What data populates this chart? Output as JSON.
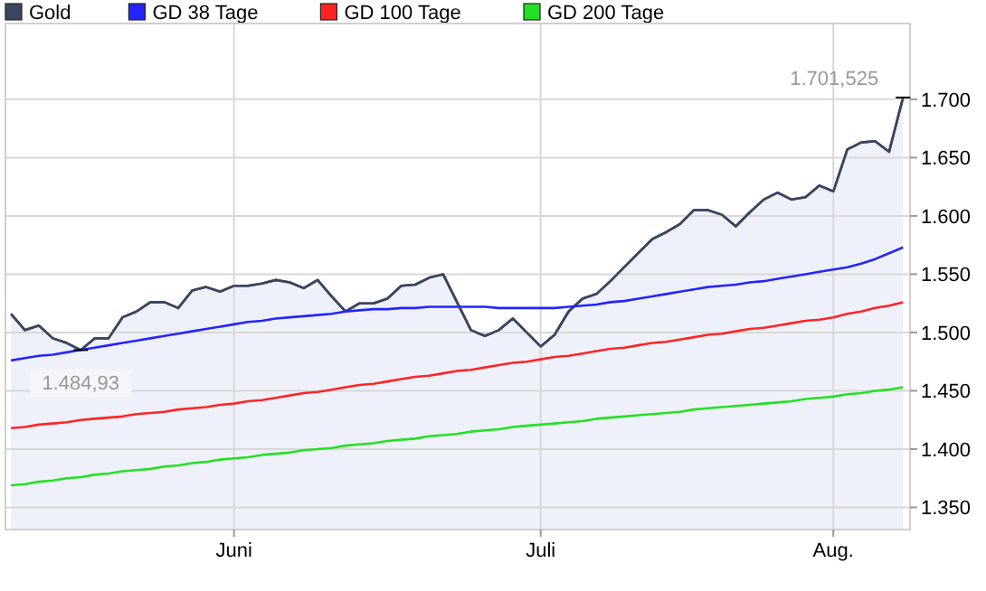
{
  "chart_data": {
    "type": "line",
    "categories": [
      null,
      null,
      null,
      null,
      null,
      null,
      null,
      null,
      null,
      null,
      null,
      null,
      null,
      null,
      null,
      null,
      "Juni",
      null,
      null,
      null,
      null,
      null,
      null,
      null,
      null,
      null,
      null,
      null,
      null,
      null,
      null,
      null,
      null,
      null,
      null,
      null,
      null,
      null,
      "Juli",
      null,
      null,
      null,
      null,
      null,
      null,
      null,
      null,
      null,
      null,
      null,
      null,
      null,
      null,
      null,
      null,
      null,
      null,
      null,
      null,
      "Aug.",
      null,
      null,
      null,
      null,
      null
    ],
    "series": [
      {
        "name": "Gold",
        "type": "area",
        "color": "#3a4560",
        "values": [
          1516,
          1502,
          1506,
          1495,
          1491,
          1484.93,
          1495,
          1495,
          1513,
          1518,
          1526,
          1526,
          1521,
          1536,
          1539,
          1535,
          1540,
          1540,
          1542,
          1545,
          1543,
          1538,
          1545,
          1531,
          1518,
          1525,
          1525,
          1529,
          1540,
          1541,
          1547,
          1550,
          1526,
          1502,
          1497,
          1502,
          1512,
          1500,
          1488,
          1498,
          1518,
          1529,
          1533,
          1544,
          1556,
          1568,
          1580,
          1586,
          1593,
          1605,
          1605,
          1601,
          1591,
          1603,
          1614,
          1620,
          1614,
          1616,
          1626,
          1621,
          1657,
          1663,
          1664,
          1655,
          1701.525
        ]
      },
      {
        "name": "GD 38 Tage",
        "color": "#2424ff",
        "values": [
          1476,
          1478,
          1480,
          1481,
          1483,
          1485,
          1487,
          1489,
          1491,
          1493,
          1495,
          1497,
          1499,
          1501,
          1503,
          1505,
          1507,
          1509,
          1510,
          1512,
          1513,
          1514,
          1515,
          1516,
          1518,
          1519,
          1520,
          1520,
          1521,
          1521,
          1522,
          1522,
          1522,
          1522,
          1522,
          1521,
          1521,
          1521,
          1521,
          1521,
          1522,
          1523,
          1524,
          1526,
          1527,
          1529,
          1531,
          1533,
          1535,
          1537,
          1539,
          1540,
          1541,
          1543,
          1544,
          1546,
          1548,
          1550,
          1552,
          1554,
          1556,
          1559,
          1563,
          1568,
          1573
        ]
      },
      {
        "name": "GD 100 Tage",
        "color": "#ff2424",
        "values": [
          1418,
          1419,
          1421,
          1422,
          1423,
          1425,
          1426,
          1427,
          1428,
          1430,
          1431,
          1432,
          1434,
          1435,
          1436,
          1438,
          1439,
          1441,
          1442,
          1444,
          1446,
          1448,
          1449,
          1451,
          1453,
          1455,
          1456,
          1458,
          1460,
          1462,
          1463,
          1465,
          1467,
          1468,
          1470,
          1472,
          1474,
          1475,
          1477,
          1479,
          1480,
          1482,
          1484,
          1486,
          1487,
          1489,
          1491,
          1492,
          1494,
          1496,
          1498,
          1499,
          1501,
          1503,
          1504,
          1506,
          1508,
          1510,
          1511,
          1513,
          1516,
          1518,
          1521,
          1523,
          1526
        ]
      },
      {
        "name": "GD 200 Tage",
        "color": "#24e024",
        "values": [
          1369,
          1370,
          1372,
          1373,
          1375,
          1376,
          1378,
          1379,
          1381,
          1382,
          1383,
          1385,
          1386,
          1388,
          1389,
          1391,
          1392,
          1393,
          1395,
          1396,
          1397,
          1399,
          1400,
          1401,
          1403,
          1404,
          1405,
          1407,
          1408,
          1409,
          1411,
          1412,
          1413,
          1415,
          1416,
          1417,
          1419,
          1420,
          1421,
          1422,
          1423,
          1424,
          1426,
          1427,
          1428,
          1429,
          1430,
          1431,
          1432,
          1434,
          1435,
          1436,
          1437,
          1438,
          1439,
          1440,
          1441,
          1443,
          1444,
          1445,
          1447,
          1448,
          1450,
          1451,
          1453
        ]
      }
    ],
    "ylim": [
      1331,
      1765
    ],
    "yticks": [
      {
        "value": 1350,
        "label": "1.350"
      },
      {
        "value": 1400,
        "label": "1.400"
      },
      {
        "value": 1450,
        "label": "1.450"
      },
      {
        "value": 1500,
        "label": "1.500"
      },
      {
        "value": 1550,
        "label": "1.550"
      },
      {
        "value": 1600,
        "label": "1.600"
      },
      {
        "value": 1650,
        "label": "1.650"
      },
      {
        "value": 1700,
        "label": "1.700"
      }
    ],
    "annotations": [
      "1.701,525",
      "1.484,93"
    ],
    "grid": true,
    "legend": "top left"
  }
}
